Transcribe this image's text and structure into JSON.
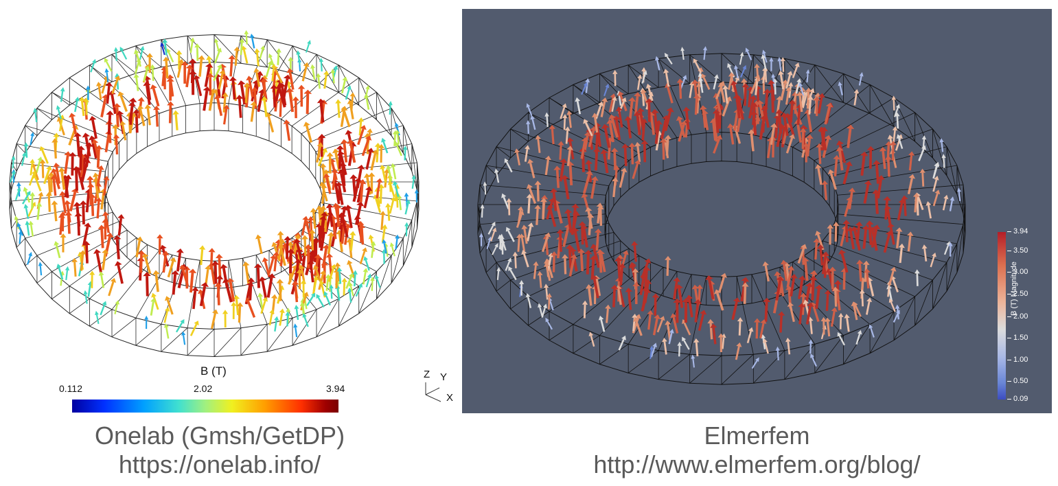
{
  "left": {
    "colorbar_title": "B (T)",
    "colorbar_min": "0.112",
    "colorbar_mid": "2.02",
    "colorbar_max": "3.94",
    "axis_z": "Z",
    "axis_y": "Y",
    "axis_x": "X",
    "caption_line1": "Onelab (Gmsh/GetDP)",
    "caption_line2": "https://onelab.info/",
    "colors": [
      "#0000a0",
      "#00a0ff",
      "#a0f080",
      "#f0f020",
      "#ffa000",
      "#a00000"
    ]
  },
  "right": {
    "background": "#525b6e",
    "legend_title": "B (T) Magnitude",
    "legend_ticks": [
      "3.94",
      "3.50",
      "3.00",
      "2.50",
      "2.00",
      "1.50",
      "1.00",
      "0.50",
      "0.09"
    ],
    "caption_line1": "Elmerfem",
    "caption_line2": "http://www.elmerfem.org/blog/",
    "colors": [
      "#b41e28",
      "#dc7050",
      "#ecb49a",
      "#dcdcdc",
      "#a8b8e6",
      "#3b4cc0"
    ]
  }
}
